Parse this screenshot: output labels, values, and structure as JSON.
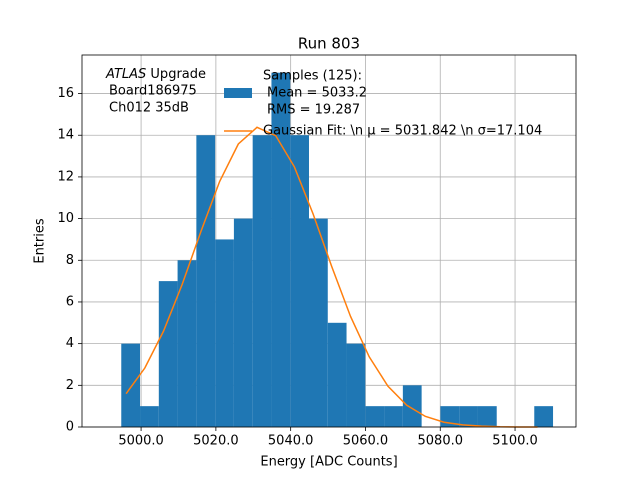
{
  "chart_data": {
    "type": "histogram",
    "title": "Run 803",
    "xlabel": "Energy [ADC Counts]",
    "ylabel": "Entries",
    "annotation_emphasis": "ATLAS",
    "annotation_lines": [
      "Upgrade",
      "Board186975",
      "Ch012 35dB"
    ],
    "bins": [
      4994.7,
      4999.72,
      5004.74,
      5009.76,
      5014.78,
      5019.8,
      5024.82,
      5029.84,
      5034.86,
      5039.88,
      5044.9,
      5049.92,
      5054.94,
      5059.96,
      5064.98,
      5070.0,
      5075.02,
      5080.04,
      5085.06,
      5090.08,
      5095.1,
      5100.12,
      5105.14,
      5110.16
    ],
    "series": [
      {
        "type": "histogram",
        "name": [
          "Samples (125):",
          "Mean = 5033.2",
          "RMS = 19.287"
        ],
        "color": "#1f77b4",
        "values": [
          4,
          1,
          7,
          8,
          14,
          9,
          10,
          14,
          17,
          14,
          10,
          5,
          4,
          1,
          1,
          2,
          0,
          1,
          1,
          1,
          0,
          0,
          1
        ]
      },
      {
        "type": "line",
        "name": "Gaussian Fit: \\n μ = 5031.842 \\n σ=17.104",
        "color": "#ff7f0e",
        "x": [
          4996,
          5001,
          5006,
          5011,
          5016,
          5021,
          5026,
          5031,
          5036,
          5041,
          5046,
          5051,
          5056,
          5061,
          5066,
          5071,
          5076,
          5081,
          5086,
          5091,
          5096,
          5101,
          5106
        ],
        "values": [
          1.6,
          2.83,
          4.6,
          6.85,
          9.38,
          11.78,
          13.58,
          14.38,
          13.98,
          12.48,
          10.22,
          7.69,
          5.31,
          3.37,
          1.96,
          1.05,
          0.51,
          0.23,
          0.1,
          0.04,
          0.01,
          0.0,
          0.0
        ]
      }
    ],
    "xlim": [
      4984.2,
      5116.3
    ],
    "ylim": [
      0,
      17.85
    ],
    "xticks": [
      {
        "value": 5000,
        "label": "5000.0"
      },
      {
        "value": 5020,
        "label": "5020.0"
      },
      {
        "value": 5040,
        "label": "5040.0"
      },
      {
        "value": 5060,
        "label": "5060.0"
      },
      {
        "value": 5080,
        "label": "5080.0"
      },
      {
        "value": 5100,
        "label": "5100.0"
      }
    ],
    "yticks": [
      0,
      2,
      4,
      6,
      8,
      10,
      12,
      14,
      16
    ],
    "grid": true
  }
}
